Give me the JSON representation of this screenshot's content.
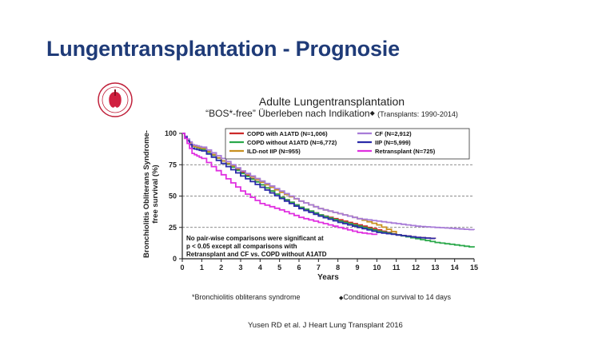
{
  "slide": {
    "title": "Lungentransplantation - Prognosie",
    "logo_icon": "ishlt-seal-icon"
  },
  "chart_data": {
    "type": "line",
    "title": "Adulte Lungentransplantation",
    "subtitle": "“BOS*-free” Überleben nach Indikation",
    "subtitle_mark": "◆",
    "subtitle_note": "(Transplants: 1990-2014)",
    "xlabel": "Years",
    "ylabel": "Bronchiolitis Obliterans Syndrome-free survival (%)",
    "xlim": [
      0,
      15
    ],
    "ylim": [
      0,
      100
    ],
    "xticks": [
      0,
      1,
      2,
      3,
      4,
      5,
      6,
      7,
      8,
      9,
      10,
      11,
      12,
      13,
      14,
      15
    ],
    "yticks": [
      0,
      25,
      50,
      75,
      100
    ],
    "grid": "horizontal-dashed",
    "legend": "top",
    "annotation": [
      "No pair-wise comparisons were significant at",
      "p < 0.05 except all comparisons with",
      "Retransplant and CF vs. COPD without A1ATD"
    ],
    "series": [
      {
        "name": "COPD with A1ATD (N=1,006)",
        "color": "#cc2a2a",
        "x": [
          0,
          0.5,
          1,
          2,
          3,
          4,
          5,
          6,
          7,
          8,
          9,
          10,
          11,
          12,
          13
        ],
        "y": [
          100,
          90,
          88,
          78,
          69,
          59,
          49,
          41,
          35,
          31,
          27,
          23,
          19,
          17,
          16
        ]
      },
      {
        "name": "COPD without A1ATD (N=6,772)",
        "color": "#2aa84a",
        "x": [
          0,
          0.5,
          1,
          2,
          3,
          4,
          5,
          6,
          7,
          8,
          9,
          10,
          11,
          12,
          13,
          14,
          15
        ],
        "y": [
          100,
          90,
          87,
          78,
          68,
          59,
          49,
          41,
          35,
          30,
          26,
          22,
          19,
          16,
          13,
          11,
          9
        ]
      },
      {
        "name": "ILD-not IIP (N=955)",
        "color": "#c89020",
        "x": [
          0,
          0.5,
          1,
          2,
          3,
          4,
          5,
          6,
          7,
          8,
          9,
          10,
          11
        ],
        "y": [
          100,
          90,
          88,
          78,
          70,
          61,
          53,
          46,
          40,
          36,
          32,
          27,
          20
        ]
      },
      {
        "name": "CF (N=2,912)",
        "color": "#a87cd8",
        "x": [
          0,
          0.5,
          1,
          2,
          3,
          4,
          5,
          6,
          7,
          8,
          9,
          10,
          11,
          12,
          13,
          14,
          15
        ],
        "y": [
          100,
          91,
          89,
          80,
          70,
          62,
          54,
          46,
          40,
          36,
          32,
          30,
          28,
          26,
          25,
          24,
          23
        ]
      },
      {
        "name": "IIP (N=5,999)",
        "color": "#2a2aa8",
        "x": [
          0,
          0.5,
          1,
          2,
          3,
          4,
          5,
          6,
          7,
          8,
          9,
          10,
          11,
          12,
          13
        ],
        "y": [
          100,
          88,
          86,
          76,
          66,
          57,
          48,
          40,
          34,
          29,
          25,
          21,
          19,
          17,
          16
        ]
      },
      {
        "name": "Retransplant (N=725)",
        "color": "#e030e0",
        "x": [
          0,
          0.5,
          1,
          2,
          3,
          4,
          5,
          6,
          7,
          8,
          9,
          10
        ],
        "y": [
          100,
          84,
          80,
          67,
          54,
          44,
          39,
          33,
          29,
          25,
          21,
          19
        ]
      }
    ]
  },
  "footnotes": {
    "bos": "*Bronchiolitis obliterans syndrome",
    "mark": "◆",
    "conditional": "Conditional on survival to 14 days"
  },
  "citation": "Yusen RD et al. J Heart Lung Transplant 2016"
}
